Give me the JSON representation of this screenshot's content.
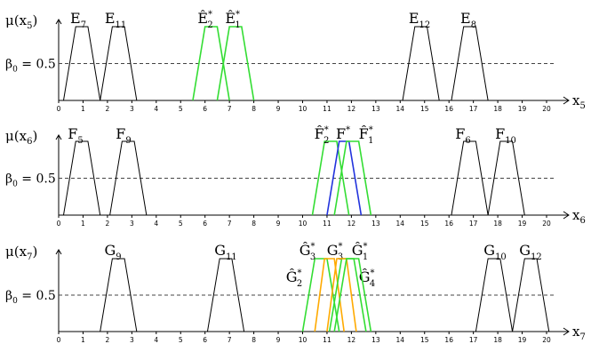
{
  "chart_data": [
    {
      "type": "line",
      "ylabel": {
        "mu": "μ(x",
        "sub": "5",
        "close": ")"
      },
      "xlabel": {
        "main": "x",
        "sub": "5"
      },
      "beta": {
        "main": "β",
        "sub": "0",
        "rest": " = 0.5"
      },
      "xlim": [
        0,
        20
      ],
      "ylim": [
        0,
        1
      ],
      "threshold": 0.5,
      "ticks": [
        "0",
        "1",
        "2",
        "3",
        "4",
        "5",
        "6",
        "7",
        "8",
        "9",
        "10",
        "11",
        "12",
        "13",
        "14",
        "15",
        "16",
        "17",
        "18",
        "19",
        "20"
      ],
      "series": [
        {
          "name": "E7",
          "label": {
            "main": "E",
            "sub": "7"
          },
          "color": "#000000",
          "points": [
            [
              0.2,
              0
            ],
            [
              0.7,
              1
            ],
            [
              1.2,
              1
            ],
            [
              1.7,
              0
            ]
          ]
        },
        {
          "name": "E11",
          "label": {
            "main": "E",
            "sub": "11"
          },
          "color": "#000000",
          "points": [
            [
              1.7,
              0
            ],
            [
              2.2,
              1
            ],
            [
              2.7,
              1
            ],
            [
              3.2,
              0
            ]
          ]
        },
        {
          "name": "Ê2*",
          "label": {
            "main": "Ê",
            "sub": "2",
            "sup": "*"
          },
          "color": "#33dd33",
          "points": [
            [
              5.5,
              0
            ],
            [
              6.0,
              1
            ],
            [
              6.5,
              1
            ],
            [
              7.0,
              0
            ]
          ]
        },
        {
          "name": "Ê1*",
          "label": {
            "main": "Ê",
            "sub": "1",
            "sup": "*"
          },
          "color": "#33dd33",
          "points": [
            [
              6.5,
              0
            ],
            [
              7.0,
              1
            ],
            [
              7.5,
              1
            ],
            [
              8.0,
              0
            ]
          ]
        },
        {
          "name": "E12",
          "label": {
            "main": "E",
            "sub": "12"
          },
          "color": "#000000",
          "points": [
            [
              14.1,
              0
            ],
            [
              14.6,
              1
            ],
            [
              15.1,
              1
            ],
            [
              15.6,
              0
            ]
          ]
        },
        {
          "name": "E8",
          "label": {
            "main": "E",
            "sub": "8"
          },
          "color": "#000000",
          "points": [
            [
              16.1,
              0
            ],
            [
              16.6,
              1
            ],
            [
              17.1,
              1
            ],
            [
              17.6,
              0
            ]
          ]
        }
      ]
    },
    {
      "type": "line",
      "ylabel": {
        "mu": "μ(x",
        "sub": "6",
        "close": ")"
      },
      "xlabel": {
        "main": "x",
        "sub": "6"
      },
      "beta": {
        "main": "β",
        "sub": "0",
        "rest": " = 0.5"
      },
      "xlim": [
        0,
        20
      ],
      "ylim": [
        0,
        1
      ],
      "threshold": 0.5,
      "ticks": [
        "0",
        "1",
        "2",
        "3",
        "4",
        "5",
        "6",
        "7",
        "8",
        "9",
        "10",
        "11",
        "12",
        "13",
        "14",
        "15",
        "16",
        "17",
        "18",
        "19",
        "20"
      ],
      "series": [
        {
          "name": "F5",
          "label": {
            "main": "F",
            "sub": "5"
          },
          "color": "#000000",
          "points": [
            [
              0.2,
              0
            ],
            [
              0.7,
              1
            ],
            [
              1.2,
              1
            ],
            [
              1.7,
              0
            ]
          ]
        },
        {
          "name": "F9",
          "label": {
            "main": "F",
            "sub": "9"
          },
          "color": "#000000",
          "points": [
            [
              2.1,
              0
            ],
            [
              2.6,
              1
            ],
            [
              3.1,
              1
            ],
            [
              3.6,
              0
            ]
          ]
        },
        {
          "name": "F̂2*",
          "label": {
            "main": "F̂",
            "sub": "2",
            "sup": "*"
          },
          "color": "#33dd33",
          "points": [
            [
              10.4,
              0
            ],
            [
              10.9,
              1
            ],
            [
              11.4,
              1
            ],
            [
              11.9,
              0
            ]
          ]
        },
        {
          "name": "F*",
          "label": {
            "main": "F",
            "sup": "*"
          },
          "color": "#2233dd",
          "points": [
            [
              11.0,
              0
            ],
            [
              11.5,
              1
            ],
            [
              11.9,
              1
            ],
            [
              12.4,
              0
            ]
          ]
        },
        {
          "name": "F̂1*",
          "label": {
            "main": "F̂",
            "sub": "1",
            "sup": "*"
          },
          "color": "#33dd33",
          "points": [
            [
              11.3,
              0
            ],
            [
              11.8,
              1
            ],
            [
              12.3,
              1
            ],
            [
              12.8,
              0
            ]
          ]
        },
        {
          "name": "F6",
          "label": {
            "main": "F",
            "sub": "6"
          },
          "color": "#000000",
          "points": [
            [
              16.1,
              0
            ],
            [
              16.6,
              1
            ],
            [
              17.1,
              1
            ],
            [
              17.6,
              0
            ]
          ]
        },
        {
          "name": "F10",
          "label": {
            "main": "F",
            "sub": "10"
          },
          "color": "#000000",
          "points": [
            [
              17.6,
              0
            ],
            [
              18.1,
              1
            ],
            [
              18.6,
              1
            ],
            [
              19.1,
              0
            ]
          ]
        }
      ]
    },
    {
      "type": "line",
      "ylabel": {
        "mu": "μ(x",
        "sub": "7",
        "close": ")"
      },
      "xlabel": {
        "main": "x",
        "sub": "7"
      },
      "beta": {
        "main": "β",
        "sub": "0",
        "rest": " = 0.5"
      },
      "xlim": [
        0,
        20
      ],
      "ylim": [
        0,
        1
      ],
      "threshold": 0.5,
      "ticks": [
        "0",
        "1",
        "2",
        "3",
        "4",
        "5",
        "6",
        "7",
        "8",
        "9",
        "10",
        "11",
        "12",
        "13",
        "14",
        "15",
        "16",
        "17",
        "18",
        "19",
        "20"
      ],
      "series": [
        {
          "name": "G9",
          "label": {
            "main": "G",
            "sub": "9"
          },
          "color": "#000000",
          "points": [
            [
              1.7,
              0
            ],
            [
              2.2,
              1
            ],
            [
              2.7,
              1
            ],
            [
              3.2,
              0
            ]
          ]
        },
        {
          "name": "G11",
          "label": {
            "main": "G",
            "sub": "11"
          },
          "color": "#000000",
          "points": [
            [
              6.1,
              0
            ],
            [
              6.6,
              1
            ],
            [
              7.1,
              1
            ],
            [
              7.6,
              0
            ]
          ]
        },
        {
          "name": "Ĝ3*",
          "label": {
            "main": "Ĝ",
            "sub": "3",
            "sup": "*"
          },
          "color": "#33dd33",
          "points": [
            [
              10.0,
              0
            ],
            [
              10.5,
              1
            ],
            [
              11.0,
              1
            ],
            [
              11.5,
              0
            ]
          ]
        },
        {
          "name": "Ĝ2*",
          "label": {
            "main": "Ĝ",
            "sub": "2",
            "sup": "*"
          },
          "color": "#ffaa00",
          "points": [
            [
              10.5,
              0
            ],
            [
              10.9,
              1
            ],
            [
              11.3,
              1
            ],
            [
              11.7,
              0
            ]
          ]
        },
        {
          "name": "G3*",
          "label": {
            "main": "G",
            "sub": "3",
            "sup": "*"
          },
          "color": "#33dd33",
          "points": [
            [
              11.1,
              0
            ],
            [
              11.6,
              1
            ],
            [
              12.1,
              1
            ],
            [
              12.6,
              0
            ]
          ]
        },
        {
          "name": "Ĝ4*",
          "label": {
            "main": "Ĝ",
            "sub": "4",
            "sup": "*"
          },
          "color": "#ffaa00",
          "points": [
            [
              11.0,
              0
            ],
            [
              11.4,
              1
            ],
            [
              11.8,
              1
            ],
            [
              12.2,
              0
            ]
          ]
        },
        {
          "name": "Ĝ1*",
          "label": {
            "main": "Ĝ",
            "sub": "1",
            "sup": "*"
          },
          "color": "#33dd33",
          "points": [
            [
              11.3,
              0
            ],
            [
              11.8,
              1
            ],
            [
              12.3,
              1
            ],
            [
              12.8,
              0
            ]
          ]
        },
        {
          "name": "G10",
          "label": {
            "main": "G",
            "sub": "10"
          },
          "color": "#000000",
          "points": [
            [
              17.1,
              0
            ],
            [
              17.6,
              1
            ],
            [
              18.1,
              1
            ],
            [
              18.6,
              0
            ]
          ]
        },
        {
          "name": "G12",
          "label": {
            "main": "G",
            "sub": "12"
          },
          "color": "#000000",
          "points": [
            [
              18.6,
              0
            ],
            [
              19.1,
              1
            ],
            [
              19.6,
              1
            ],
            [
              20.1,
              0
            ]
          ]
        }
      ]
    }
  ]
}
